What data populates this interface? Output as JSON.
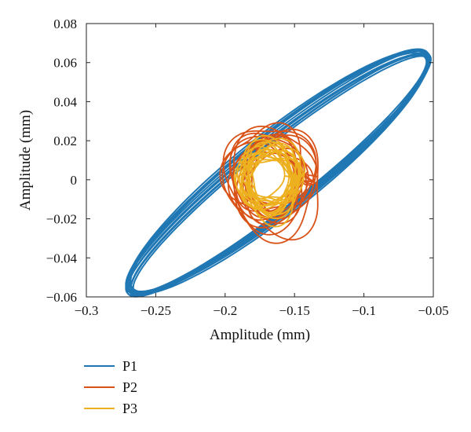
{
  "chart_data": {
    "type": "line",
    "title": "",
    "xlabel": "Amplitude (mm)",
    "ylabel": "Amplitude (mm)",
    "xlim": [
      -0.3,
      -0.05
    ],
    "ylim": [
      -0.06,
      0.08
    ],
    "xticks": [
      -0.3,
      -0.25,
      -0.2,
      -0.15,
      -0.1,
      -0.05
    ],
    "yticks": [
      -0.06,
      -0.04,
      -0.02,
      0,
      0.02,
      0.04,
      0.06,
      0.08
    ],
    "xtick_labels": [
      "−0.3",
      "−0.25",
      "−0.2",
      "−0.15",
      "−0.1",
      "−0.05"
    ],
    "ytick_labels": [
      "−0.06",
      "−0.04",
      "−0.02",
      "0",
      "0.02",
      "0.04",
      "0.06",
      "0.08"
    ],
    "grid": false,
    "legend": "bottom-left, below plot",
    "series": [
      {
        "name": "P1",
        "color": "#1f77b4",
        "shape": "tilted elliptical orbit",
        "center": [
          -0.165,
          0.003
        ],
        "extent_x": [
          -0.27,
          -0.052
        ],
        "extent_y": [
          -0.058,
          0.065
        ]
      },
      {
        "name": "P2",
        "color": "#d95319",
        "shape": "roughly circular orbit",
        "center": [
          -0.166,
          0.001
        ],
        "extent_x": [
          -0.198,
          -0.133
        ],
        "extent_y": [
          -0.026,
          0.028
        ]
      },
      {
        "name": "P3",
        "color": "#edb120",
        "shape": "roughly circular orbit",
        "center": [
          -0.168,
          0.0
        ],
        "extent_x": [
          -0.19,
          -0.145
        ],
        "extent_y": [
          -0.018,
          0.02
        ]
      }
    ]
  }
}
